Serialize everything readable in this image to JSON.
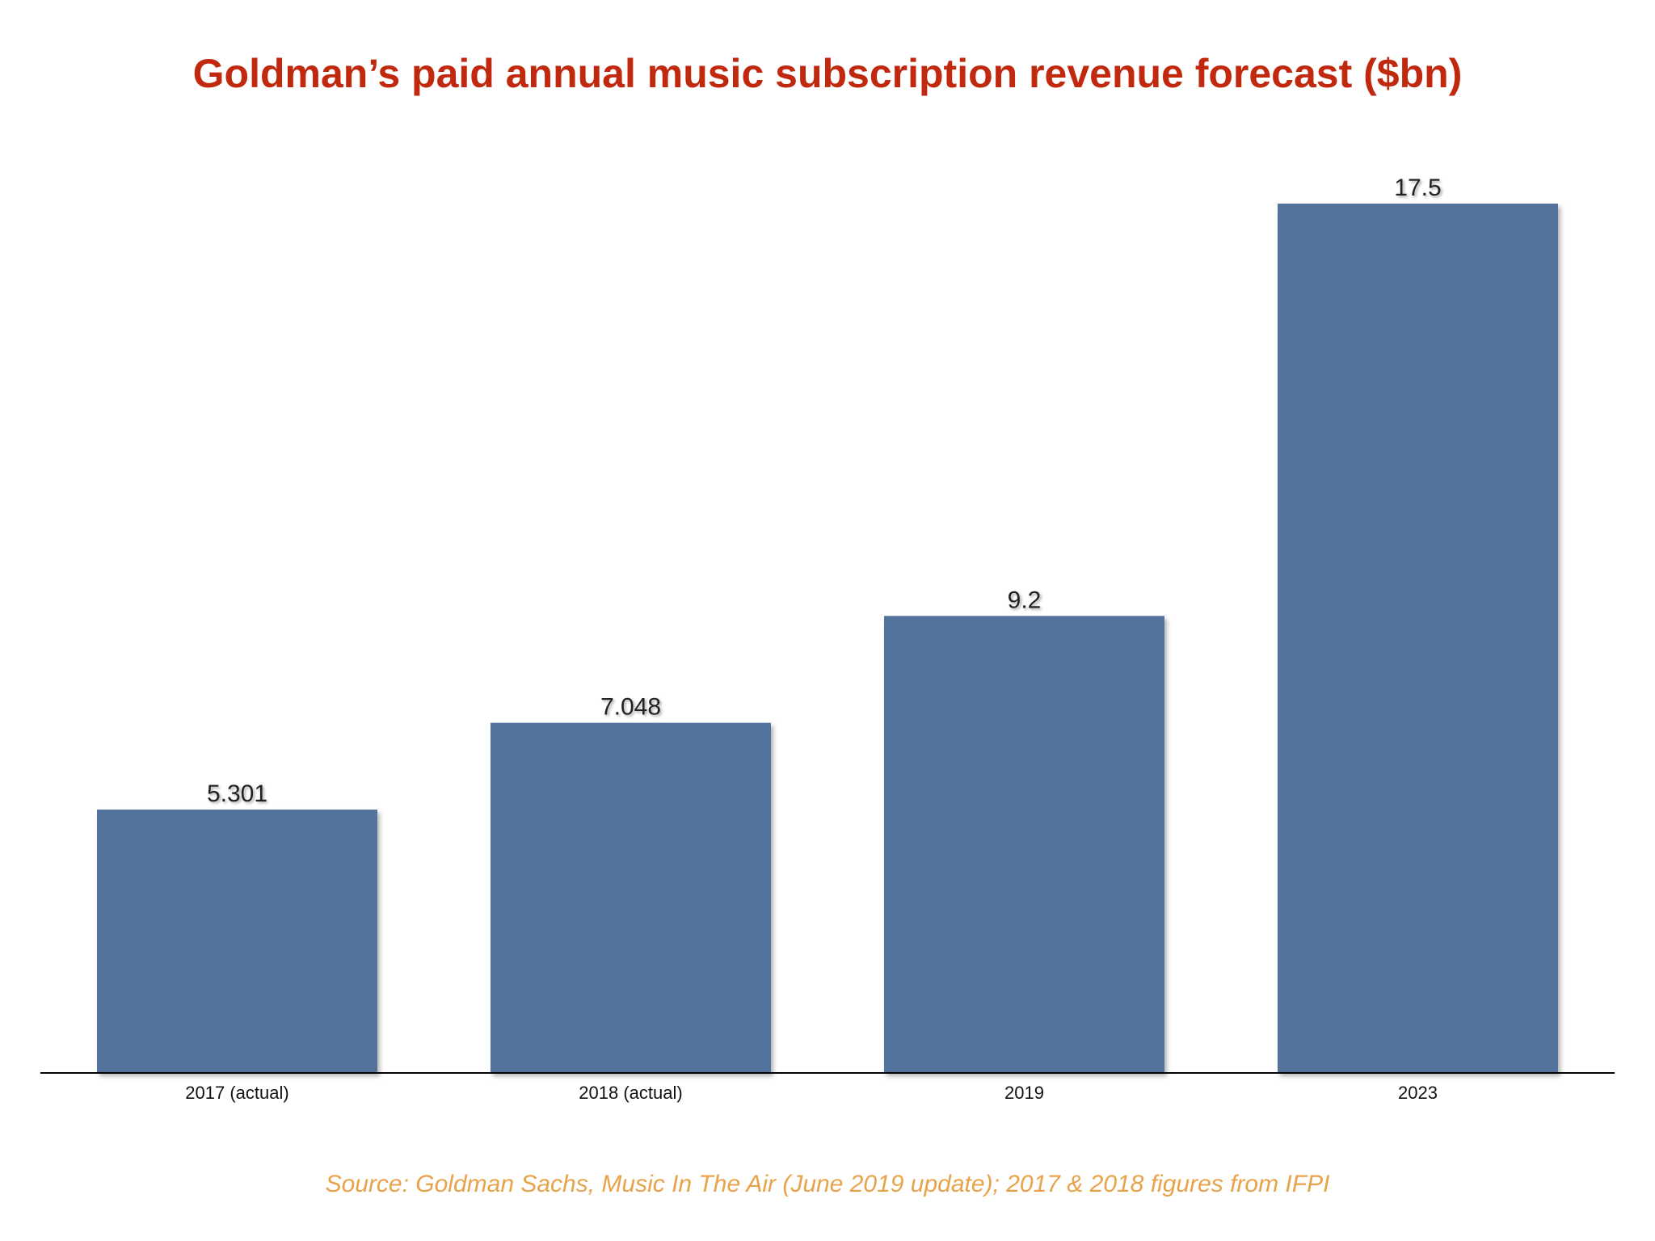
{
  "chart_data": {
    "type": "bar",
    "title": "Goldman’s paid annual music subscription revenue forecast ($bn)",
    "categories": [
      "2017 (actual)",
      "2018 (actual)",
      "2019",
      "2023"
    ],
    "values": [
      5.301,
      7.048,
      9.2,
      17.5
    ],
    "value_labels": [
      "5.301",
      "7.048",
      "9.2",
      "17.5"
    ],
    "xlabel": "",
    "ylabel": "",
    "ylim": [
      0,
      17.5
    ],
    "grid": false,
    "colors": {
      "bar": "#52729c",
      "title": "#c1290f",
      "source": "#e8a34a"
    }
  },
  "source": "Source: Goldman Sachs, Music In The Air (June 2019 update); 2017 & 2018 figures from IFPI"
}
